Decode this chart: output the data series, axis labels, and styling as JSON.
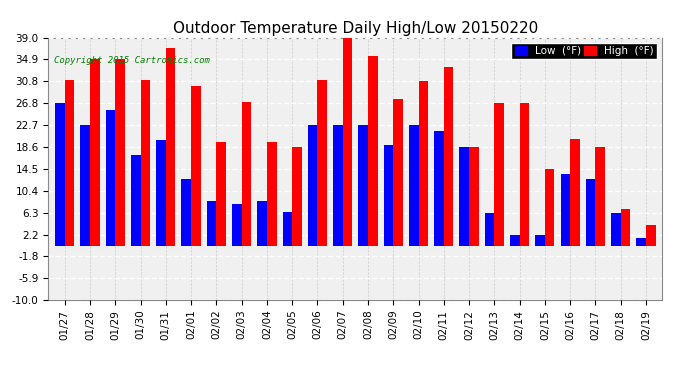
{
  "title": "Outdoor Temperature Daily High/Low 20150220",
  "copyright": "Copyright 2015 Cartronics.com",
  "legend_low": "Low  (°F)",
  "legend_high": "High  (°F)",
  "dates": [
    "01/27",
    "01/28",
    "01/29",
    "01/30",
    "01/31",
    "02/01",
    "02/02",
    "02/03",
    "02/04",
    "02/05",
    "02/06",
    "02/07",
    "02/08",
    "02/09",
    "02/10",
    "02/11",
    "02/12",
    "02/13",
    "02/14",
    "02/15",
    "02/16",
    "02/17",
    "02/18",
    "02/19"
  ],
  "highs": [
    31.0,
    35.0,
    35.0,
    31.0,
    37.0,
    30.0,
    19.5,
    27.0,
    19.5,
    18.5,
    31.0,
    39.0,
    35.5,
    27.5,
    30.8,
    33.5,
    18.6,
    26.8,
    26.8,
    14.5,
    20.0,
    18.6,
    7.0,
    4.0
  ],
  "lows": [
    26.8,
    22.7,
    25.5,
    17.0,
    19.8,
    12.5,
    8.5,
    8.0,
    8.5,
    6.5,
    22.7,
    22.7,
    22.7,
    19.0,
    22.7,
    21.5,
    18.6,
    6.3,
    2.2,
    2.2,
    13.5,
    12.5,
    6.3,
    1.5
  ],
  "ylim": [
    -10.0,
    39.0
  ],
  "yticks": [
    -10.0,
    -5.9,
    -1.8,
    2.2,
    6.3,
    10.4,
    14.5,
    18.6,
    22.7,
    26.8,
    30.8,
    34.9,
    39.0
  ],
  "bar_width": 0.38,
  "high_color": "#ff0000",
  "low_color": "#0000ff",
  "bg_color": "#ffffff",
  "plot_bg_color": "#f0f0f0",
  "title_fontsize": 11,
  "tick_fontsize": 7.5,
  "copyright_color": "green",
  "border_color": "#888888"
}
